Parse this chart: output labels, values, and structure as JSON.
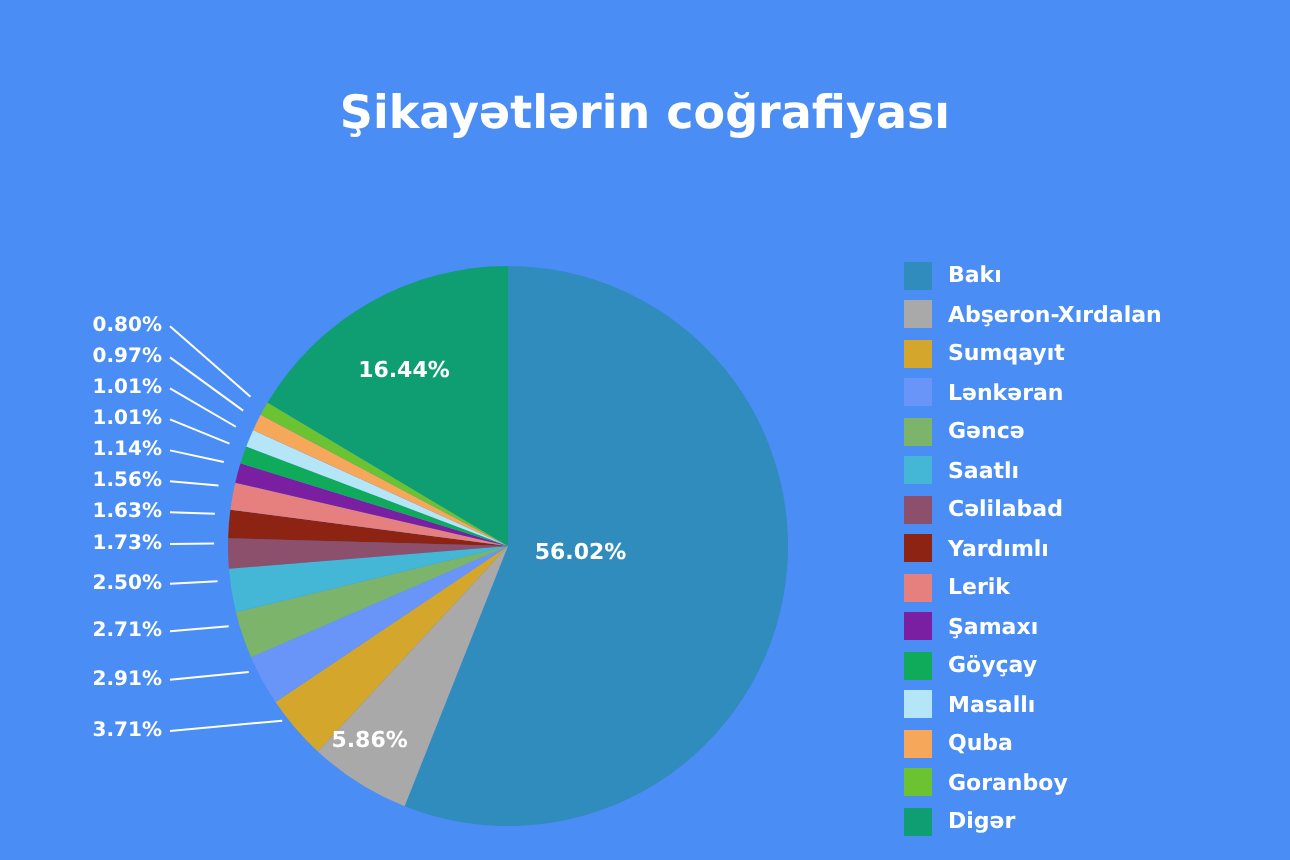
{
  "chart_data": {
    "type": "pie",
    "title": "Şikayətlərin coğrafiyası",
    "categories": [
      "Bakı",
      "Abşeron-Xırdalan",
      "Sumqayıt",
      "Lənkəran",
      "Gəncə",
      "Saatlı",
      "Cəlilabad",
      "Yardımlı",
      "Lerik",
      "Şamaxı",
      "Göyçay",
      "Masallı",
      "Quba",
      "Goranboy",
      "Digər"
    ],
    "values": [
      56.02,
      5.86,
      3.71,
      2.91,
      2.71,
      2.5,
      1.73,
      1.63,
      1.56,
      1.14,
      1.01,
      1.01,
      0.97,
      0.8,
      16.44
    ],
    "colors": [
      "#2f8cbd",
      "#a9a9a9",
      "#d4a72c",
      "#6a95f8",
      "#7db46c",
      "#44b6d6",
      "#8c4f6c",
      "#8c2313",
      "#e5807e",
      "#7a1fa2",
      "#0fab5a",
      "#b5e6f8",
      "#f7a75a",
      "#6cc331",
      "#0f9e72"
    ],
    "value_labels": [
      "56.02%",
      "5.86%",
      "3.71%",
      "2.91%",
      "2.71%",
      "2.50%",
      "1.73%",
      "1.63%",
      "1.56%",
      "1.14%",
      "1.01%",
      "1.01%",
      "0.97%",
      "0.80%",
      "16.44%"
    ],
    "legend": "right"
  }
}
